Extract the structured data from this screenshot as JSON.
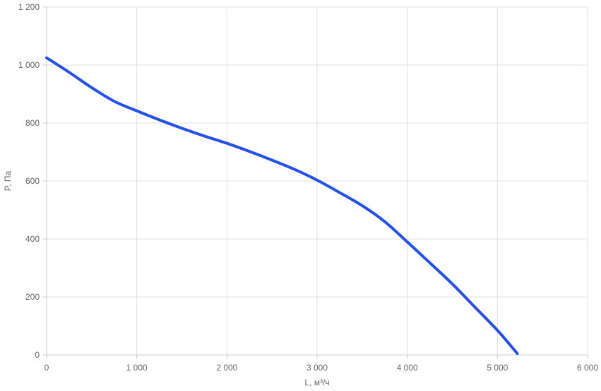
{
  "chart_data": {
    "type": "line",
    "xlabel": "L, м³/ч",
    "ylabel": "P, Па",
    "xlim": [
      0,
      6000
    ],
    "ylim": [
      0,
      1200
    ],
    "x_ticks": [
      0,
      1000,
      2000,
      3000,
      4000,
      5000,
      6000
    ],
    "x_tick_labels": [
      "0",
      "1 000",
      "2 000",
      "3 000",
      "4 000",
      "5 000",
      "6 000"
    ],
    "y_ticks": [
      0,
      200,
      400,
      600,
      800,
      1000,
      1200
    ],
    "y_tick_labels": [
      "0",
      "200",
      "400",
      "600",
      "800",
      "1 000",
      "1 200"
    ],
    "grid": true,
    "series": [
      {
        "color": "#2450e6",
        "x": [
          0,
          250,
          500,
          750,
          1000,
          1250,
          1500,
          1750,
          2000,
          2250,
          2500,
          2750,
          3000,
          3250,
          3500,
          3750,
          4000,
          4250,
          4500,
          4750,
          5000,
          5220
        ],
        "y": [
          1025,
          975,
          922,
          875,
          842,
          811,
          782,
          755,
          730,
          702,
          672,
          640,
          603,
          560,
          515,
          460,
          390,
          318,
          245,
          165,
          85,
          5
        ]
      }
    ]
  }
}
